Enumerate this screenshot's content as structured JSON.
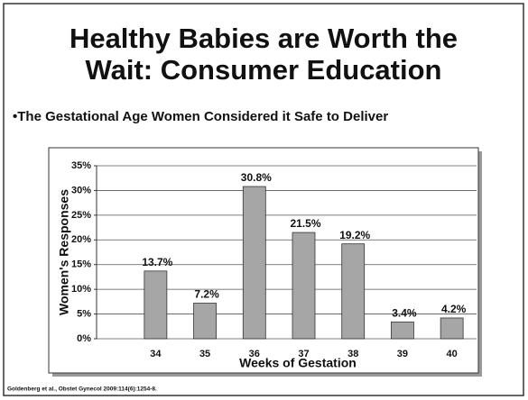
{
  "chart_data": {
    "type": "bar",
    "title": [
      "Healthy Babies are Worth the",
      "Wait: Consumer Education"
    ],
    "subtitle": "•The Gestational Age Women Considered it Safe to Deliver",
    "x_label": "Weeks of Gestation",
    "y_label": "Women's Responses",
    "categories": [
      "34",
      "35",
      "36",
      "37",
      "38",
      "39",
      "40"
    ],
    "values": [
      13.7,
      7.2,
      30.8,
      21.5,
      19.2,
      3.4,
      4.2
    ],
    "value_labels": [
      "13.7%",
      "7.2%",
      "30.8%",
      "21.5%",
      "19.2%",
      "3.4%",
      "4.2%"
    ],
    "color": "#a6a6a6",
    "ylim": [
      0,
      35
    ],
    "yticks": [
      {
        "value": 0,
        "label": "0%"
      },
      {
        "value": 5,
        "label": "5%"
      },
      {
        "value": 10,
        "label": "10%"
      },
      {
        "value": 15,
        "label": "15%"
      },
      {
        "value": 20,
        "label": "20%"
      },
      {
        "value": 25,
        "label": "25%"
      },
      {
        "value": 30,
        "label": "30%"
      },
      {
        "value": 35,
        "label": "35%"
      }
    ],
    "grid": true,
    "annotations": [
      "Goldenberg et al., Obstet Gynecol 2009:114(6):1254-8."
    ]
  }
}
